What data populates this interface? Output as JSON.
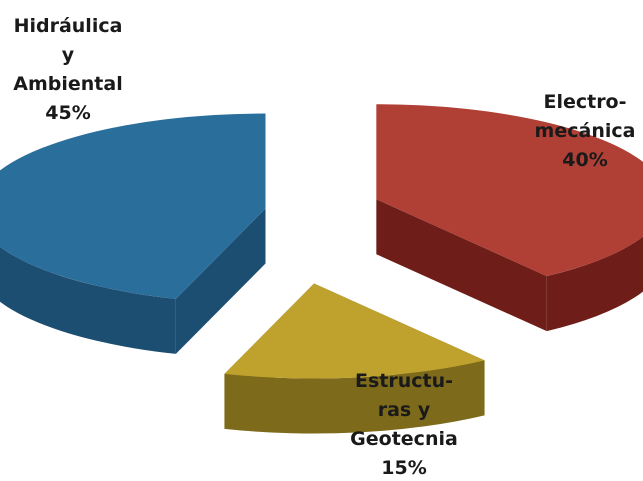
{
  "chart_data": {
    "type": "pie",
    "style": "3d-exploded",
    "categories": [
      "Hidráulica y Ambiental",
      "Electro-mecánica",
      "Estructuras y Geotecnia"
    ],
    "values": [
      45,
      40,
      15
    ],
    "unit": "%",
    "labels": [
      {
        "lines": [
          "Hidráulica",
          "y",
          "Ambiental",
          "45%"
        ]
      },
      {
        "lines": [
          "Electro-",
          "mecánica",
          "40%"
        ]
      },
      {
        "lines": [
          "Estructu-",
          "ras y",
          "Geotecnia",
          "15%"
        ]
      }
    ],
    "colors": [
      "#2a6e9c",
      "#b03f35",
      "#bfa22e"
    ],
    "side_colors": [
      "#1c4e72",
      "#6e1d19",
      "#7d6a1a"
    ]
  }
}
